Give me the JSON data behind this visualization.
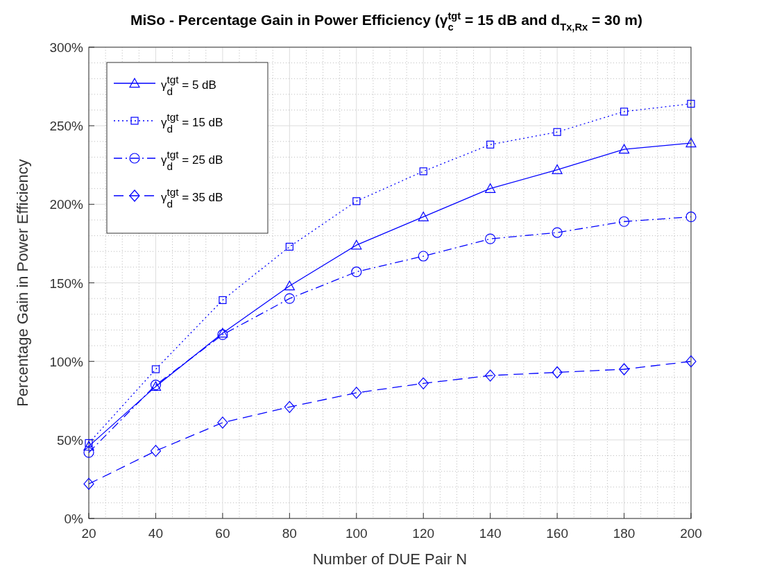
{
  "chart_data": {
    "type": "line",
    "title": "MiSo - Percentage Gain in Power Efficiency (γ$_{c}$$^{tgt}$ = 15 dB and d$_{Tx,Rx}$ = 30 m)",
    "xlabel": "Number of DUE Pair N",
    "ylabel": "Percentage Gain in Power Efficiency",
    "x": [
      20,
      40,
      60,
      80,
      100,
      120,
      140,
      160,
      180,
      200
    ],
    "xlim": [
      20,
      200
    ],
    "xticks": [
      20,
      40,
      60,
      80,
      100,
      120,
      140,
      160,
      180,
      200
    ],
    "ylim": [
      0,
      300
    ],
    "yticks": [
      {
        "value": 0,
        "label": "0%"
      },
      {
        "value": 50,
        "label": "50%"
      },
      {
        "value": 100,
        "label": "100%"
      },
      {
        "value": 150,
        "label": "150%"
      },
      {
        "value": 200,
        "label": "200%"
      },
      {
        "value": 250,
        "label": "250%"
      },
      {
        "value": 300,
        "label": "300%"
      }
    ],
    "grid": true,
    "legend": "top left",
    "series": [
      {
        "name": "γ$_{d}$$^{tgt}$ = 5 dB",
        "color": "#0000ff",
        "marker": "triangle",
        "line_style": "solid",
        "values": [
          46,
          84,
          118,
          148,
          174,
          192,
          210,
          222,
          235,
          239
        ]
      },
      {
        "name": "γ$_{d}$$^{tgt}$ = 15 dB",
        "color": "#0000ff",
        "marker": "square",
        "line_style": "dotted",
        "values": [
          48,
          95,
          139,
          173,
          202,
          221,
          238,
          246,
          259,
          264
        ]
      },
      {
        "name": "γ$_{d}$$^{tgt}$ = 25 dB",
        "color": "#0000ff",
        "marker": "circle",
        "line_style": "dashdot",
        "values": [
          42,
          85,
          117,
          140,
          157,
          167,
          178,
          182,
          189,
          192
        ]
      },
      {
        "name": "γ$_{d}$$^{tgt}$ = 35 dB",
        "color": "#0000ff",
        "marker": "diamond",
        "line_style": "dashed",
        "values": [
          22,
          43,
          61,
          71,
          80,
          86,
          91,
          93,
          95,
          100
        ]
      }
    ]
  }
}
